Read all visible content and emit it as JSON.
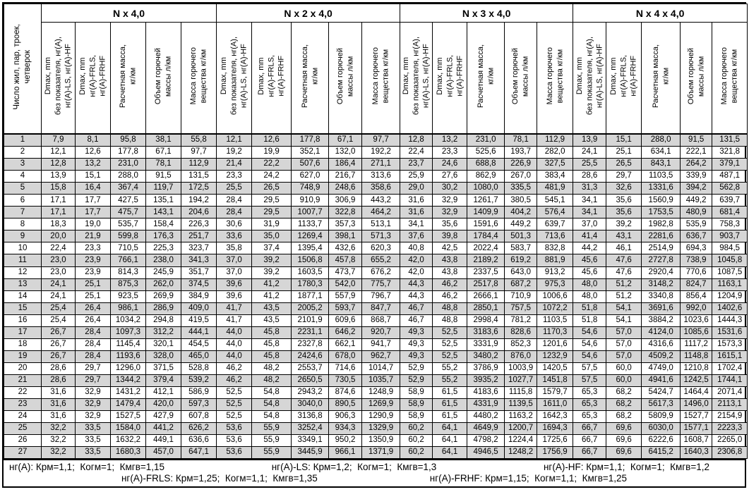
{
  "row_header": "Число жил, пар, троек,\nчетверок",
  "column_headers": [
    "Dmax, mm\nбез показателя, нг(А),\nнг(А)-LS, нг(А)-HF",
    "Dmax, mm\nнг(А)-FRLS,\nнг(А)-FRHF",
    "Расчетная масса,\nкг/км",
    "Объем горючей\nмассы л/км",
    "Масса горючего\nвещества кг/км"
  ],
  "groups": [
    {
      "title": "N x 4,0"
    },
    {
      "title": "N x 2 x 4,0"
    },
    {
      "title": "N x 3 x 4,0"
    },
    {
      "title": "N x 4 x 4,0"
    }
  ],
  "rows": [
    {
      "n": "1",
      "values": [
        "7,9",
        "8,1",
        "95,8",
        "38,1",
        "55,8",
        "12,1",
        "12,6",
        "177,8",
        "67,1",
        "97,7",
        "12,8",
        "13,2",
        "231,0",
        "78,1",
        "112,9",
        "13,9",
        "15,1",
        "288,0",
        "91,5",
        "131,5"
      ]
    },
    {
      "n": "2",
      "values": [
        "12,1",
        "12,6",
        "177,8",
        "67,1",
        "97,7",
        "19,2",
        "19,9",
        "352,1",
        "132,0",
        "192,2",
        "22,4",
        "23,3",
        "525,6",
        "193,7",
        "282,0",
        "24,1",
        "25,1",
        "634,1",
        "222,1",
        "321,8"
      ]
    },
    {
      "n": "3",
      "values": [
        "12,8",
        "13,2",
        "231,0",
        "78,1",
        "112,9",
        "21,4",
        "22,2",
        "507,6",
        "186,4",
        "271,1",
        "23,7",
        "24,6",
        "688,8",
        "226,9",
        "327,5",
        "25,5",
        "26,5",
        "843,1",
        "264,2",
        "379,1"
      ]
    },
    {
      "n": "4",
      "values": [
        "13,9",
        "15,1",
        "288,0",
        "91,5",
        "131,5",
        "23,3",
        "24,2",
        "627,0",
        "216,7",
        "313,6",
        "25,9",
        "27,6",
        "862,9",
        "267,0",
        "383,4",
        "28,6",
        "29,7",
        "1103,5",
        "339,9",
        "487,1"
      ]
    },
    {
      "n": "5",
      "values": [
        "15,8",
        "16,4",
        "367,4",
        "119,7",
        "172,5",
        "25,5",
        "26,5",
        "748,9",
        "248,6",
        "358,6",
        "29,0",
        "30,2",
        "1080,0",
        "335,5",
        "481,9",
        "31,3",
        "32,6",
        "1331,6",
        "394,2",
        "562,8"
      ]
    },
    {
      "n": "6",
      "values": [
        "17,1",
        "17,7",
        "427,5",
        "135,1",
        "194,2",
        "28,4",
        "29,5",
        "910,9",
        "306,9",
        "443,2",
        "31,6",
        "32,9",
        "1261,7",
        "380,5",
        "545,1",
        "34,1",
        "35,6",
        "1560,9",
        "449,2",
        "639,7"
      ]
    },
    {
      "n": "7",
      "values": [
        "17,1",
        "17,7",
        "475,7",
        "143,1",
        "204,6",
        "28,4",
        "29,5",
        "1007,7",
        "322,8",
        "464,2",
        "31,6",
        "32,9",
        "1409,9",
        "404,2",
        "576,4",
        "34,1",
        "35,6",
        "1753,5",
        "480,9",
        "681,4"
      ]
    },
    {
      "n": "8",
      "values": [
        "18,3",
        "19,0",
        "535,7",
        "158,4",
        "226,3",
        "30,6",
        "31,9",
        "1133,7",
        "357,3",
        "513,1",
        "34,1",
        "35,6",
        "1591,6",
        "449,2",
        "639,7",
        "37,0",
        "39,2",
        "1982,8",
        "535,9",
        "758,3"
      ]
    },
    {
      "n": "9",
      "values": [
        "20,0",
        "21,9",
        "599,8",
        "176,3",
        "251,7",
        "33,6",
        "35,0",
        "1269,4",
        "398,1",
        "571,3",
        "37,6",
        "39,8",
        "1784,4",
        "501,3",
        "713,6",
        "41,4",
        "43,1",
        "2281,6",
        "636,7",
        "903,7"
      ]
    },
    {
      "n": "10",
      "values": [
        "22,4",
        "23,3",
        "710,5",
        "225,3",
        "323,7",
        "35,8",
        "37,4",
        "1395,4",
        "432,6",
        "620,3",
        "40,8",
        "42,5",
        "2022,4",
        "583,7",
        "832,8",
        "44,2",
        "46,1",
        "2514,9",
        "694,3",
        "984,5"
      ]
    },
    {
      "n": "11",
      "values": [
        "23,0",
        "23,9",
        "766,1",
        "238,0",
        "341,3",
        "37,0",
        "39,2",
        "1506,8",
        "457,8",
        "655,2",
        "42,0",
        "43,8",
        "2189,2",
        "619,2",
        "881,9",
        "45,6",
        "47,6",
        "2727,8",
        "738,9",
        "1045,8"
      ]
    },
    {
      "n": "12",
      "values": [
        "23,0",
        "23,9",
        "814,3",
        "245,9",
        "351,7",
        "37,0",
        "39,2",
        "1603,5",
        "473,7",
        "676,2",
        "42,0",
        "43,8",
        "2337,5",
        "643,0",
        "913,2",
        "45,6",
        "47,6",
        "2920,4",
        "770,6",
        "1087,5"
      ]
    },
    {
      "n": "13",
      "values": [
        "24,1",
        "25,1",
        "875,3",
        "262,0",
        "374,5",
        "39,6",
        "41,2",
        "1780,3",
        "542,0",
        "775,7",
        "44,3",
        "46,2",
        "2517,8",
        "687,2",
        "975,3",
        "48,0",
        "51,2",
        "3148,2",
        "824,7",
        "1163,1"
      ]
    },
    {
      "n": "14",
      "values": [
        "24,1",
        "25,1",
        "923,5",
        "269,9",
        "384,9",
        "39,6",
        "41,2",
        "1877,1",
        "557,9",
        "796,7",
        "44,3",
        "46,2",
        "2666,1",
        "710,9",
        "1006,6",
        "48,0",
        "51,2",
        "3340,8",
        "856,4",
        "1204,9"
      ]
    },
    {
      "n": "15",
      "values": [
        "25,4",
        "26,4",
        "986,1",
        "286,9",
        "409,0",
        "41,7",
        "43,5",
        "2005,2",
        "593,7",
        "847,7",
        "46,7",
        "48,8",
        "2850,1",
        "757,5",
        "1072,2",
        "51,8",
        "54,1",
        "3691,6",
        "992,0",
        "1402,6"
      ]
    },
    {
      "n": "16",
      "values": [
        "25,4",
        "26,4",
        "1034,2",
        "294,8",
        "419,5",
        "41,7",
        "43,5",
        "2101,9",
        "609,6",
        "868,7",
        "46,7",
        "48,8",
        "2998,4",
        "781,2",
        "1103,5",
        "51,8",
        "54,1",
        "3884,2",
        "1023,6",
        "1444,3"
      ]
    },
    {
      "n": "17",
      "values": [
        "26,7",
        "28,4",
        "1097,3",
        "312,2",
        "444,1",
        "44,0",
        "45,8",
        "2231,1",
        "646,2",
        "920,7",
        "49,3",
        "52,5",
        "3183,6",
        "828,6",
        "1170,3",
        "54,6",
        "57,0",
        "4124,0",
        "1085,6",
        "1531,6"
      ]
    },
    {
      "n": "18",
      "values": [
        "26,7",
        "28,4",
        "1145,4",
        "320,1",
        "454,5",
        "44,0",
        "45,8",
        "2327,8",
        "662,1",
        "941,7",
        "49,3",
        "52,5",
        "3331,9",
        "852,3",
        "1201,6",
        "54,6",
        "57,0",
        "4316,6",
        "1117,2",
        "1573,3"
      ]
    },
    {
      "n": "19",
      "values": [
        "26,7",
        "28,4",
        "1193,6",
        "328,0",
        "465,0",
        "44,0",
        "45,8",
        "2424,6",
        "678,0",
        "962,7",
        "49,3",
        "52,5",
        "3480,2",
        "876,0",
        "1232,9",
        "54,6",
        "57,0",
        "4509,2",
        "1148,8",
        "1615,1"
      ]
    },
    {
      "n": "20",
      "values": [
        "28,6",
        "29,7",
        "1296,0",
        "371,5",
        "528,8",
        "46,2",
        "48,2",
        "2553,7",
        "714,6",
        "1014,7",
        "52,9",
        "55,2",
        "3786,9",
        "1003,9",
        "1420,5",
        "57,5",
        "60,0",
        "4749,0",
        "1210,8",
        "1702,4"
      ]
    },
    {
      "n": "21",
      "values": [
        "28,6",
        "29,7",
        "1344,2",
        "379,4",
        "539,2",
        "46,2",
        "48,2",
        "2650,5",
        "730,5",
        "1035,7",
        "52,9",
        "55,2",
        "3935,2",
        "1027,7",
        "1451,8",
        "57,5",
        "60,0",
        "4941,6",
        "1242,5",
        "1744,1"
      ]
    },
    {
      "n": "22",
      "values": [
        "31,6",
        "32,9",
        "1431,2",
        "412,1",
        "586,9",
        "52,5",
        "54,8",
        "2943,2",
        "874,6",
        "1248,9",
        "58,9",
        "61,5",
        "4183,6",
        "1115,8",
        "1579,7",
        "65,3",
        "68,2",
        "5424,7",
        "1464,4",
        "2071,4"
      ]
    },
    {
      "n": "23",
      "values": [
        "31,6",
        "32,9",
        "1479,4",
        "420,0",
        "597,3",
        "52,5",
        "54,8",
        "3040,0",
        "890,5",
        "1269,9",
        "58,9",
        "61,5",
        "4331,9",
        "1139,5",
        "1611,0",
        "65,3",
        "68,2",
        "5617,3",
        "1496,0",
        "2113,1"
      ]
    },
    {
      "n": "24",
      "values": [
        "31,6",
        "32,9",
        "1527,5",
        "427,9",
        "607,8",
        "52,5",
        "54,8",
        "3136,8",
        "906,3",
        "1290,9",
        "58,9",
        "61,5",
        "4480,2",
        "1163,2",
        "1642,3",
        "65,3",
        "68,2",
        "5809,9",
        "1527,7",
        "2154,9"
      ]
    },
    {
      "n": "25",
      "values": [
        "32,2",
        "33,5",
        "1584,0",
        "441,2",
        "626,2",
        "53,6",
        "55,9",
        "3252,4",
        "934,3",
        "1329,9",
        "60,2",
        "64,1",
        "4649,9",
        "1200,7",
        "1694,3",
        "66,7",
        "69,6",
        "6030,0",
        "1577,1",
        "2223,3"
      ]
    },
    {
      "n": "26",
      "values": [
        "32,2",
        "33,5",
        "1632,2",
        "449,1",
        "636,6",
        "53,6",
        "55,9",
        "3349,1",
        "950,2",
        "1350,9",
        "60,2",
        "64,1",
        "4798,2",
        "1224,4",
        "1725,6",
        "66,7",
        "69,6",
        "6222,6",
        "1608,7",
        "2265,0"
      ]
    },
    {
      "n": "27",
      "values": [
        "32,2",
        "33,5",
        "1680,3",
        "457,0",
        "647,1",
        "53,6",
        "55,9",
        "3445,9",
        "966,1",
        "1371,9",
        "60,2",
        "64,1",
        "4946,5",
        "1248,2",
        "1756,9",
        "66,7",
        "69,6",
        "6415,2",
        "1640,3",
        "2306,8"
      ]
    }
  ],
  "footer": {
    "line1": [
      "нг(А): Крм=1,1;  Когм=1;  Кмгв=1,15",
      "нг(А)-LS: Крм=1,2;  Когм=1;  Кмгв=1,3",
      "нг(А)-HF: Крм=1,1;  Когм=1;  Кмгв=1,2"
    ],
    "line2": [
      "нг(А)-FRLS: Крм=1,25;  Когм=1,1;  Кмгв=1,35",
      "нг(А)-FRHF: Крм=1,15;  Когм=1,1;  Кмгв=1,25"
    ]
  },
  "colors": {
    "stripe": "#d6d6d6",
    "border": "#000000",
    "background": "#ffffff",
    "text": "#000000"
  }
}
